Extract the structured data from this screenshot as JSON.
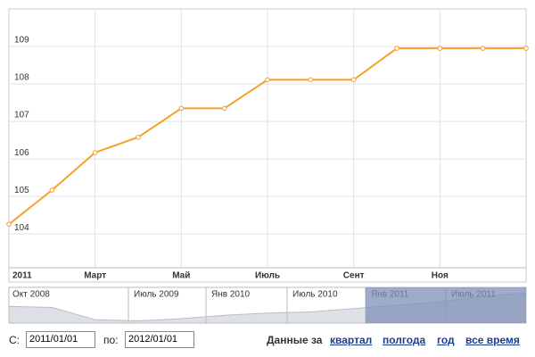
{
  "chart_data": {
    "type": "line",
    "categories": [
      "2011",
      null,
      "Март",
      null,
      "Май",
      null,
      "Июль",
      null,
      "Сент",
      null,
      "Ноя",
      null,
      null
    ],
    "series": [
      {
        "name": null,
        "color": "#f5a02a",
        "values": [
          104.26,
          105.17,
          106.17,
          106.58,
          107.35,
          107.35,
          108.11,
          108.11,
          108.11,
          108.95,
          108.95,
          108.95,
          108.95
        ]
      }
    ],
    "ylim": [
      103.1,
      110.0
    ],
    "yticks": [
      104,
      105,
      106,
      107,
      108,
      109
    ],
    "grid": true
  },
  "navigator": {
    "labels": [
      "Окт 2008",
      "Июль 2009",
      "Янв 2010",
      "Июль 2010",
      "Янв 2011",
      "Июль 2011"
    ],
    "values": [
      95,
      94,
      83,
      82,
      84,
      87,
      89,
      90,
      93,
      96,
      99,
      104,
      107
    ],
    "ylim": [
      80,
      112
    ]
  },
  "controls": {
    "from_label": "С:",
    "from_value": "2011/01/01",
    "to_label": "по:",
    "to_value": "2012/01/01",
    "period_label": "Данные за",
    "links": [
      "квартал",
      "полгода",
      "год",
      "все время"
    ]
  }
}
